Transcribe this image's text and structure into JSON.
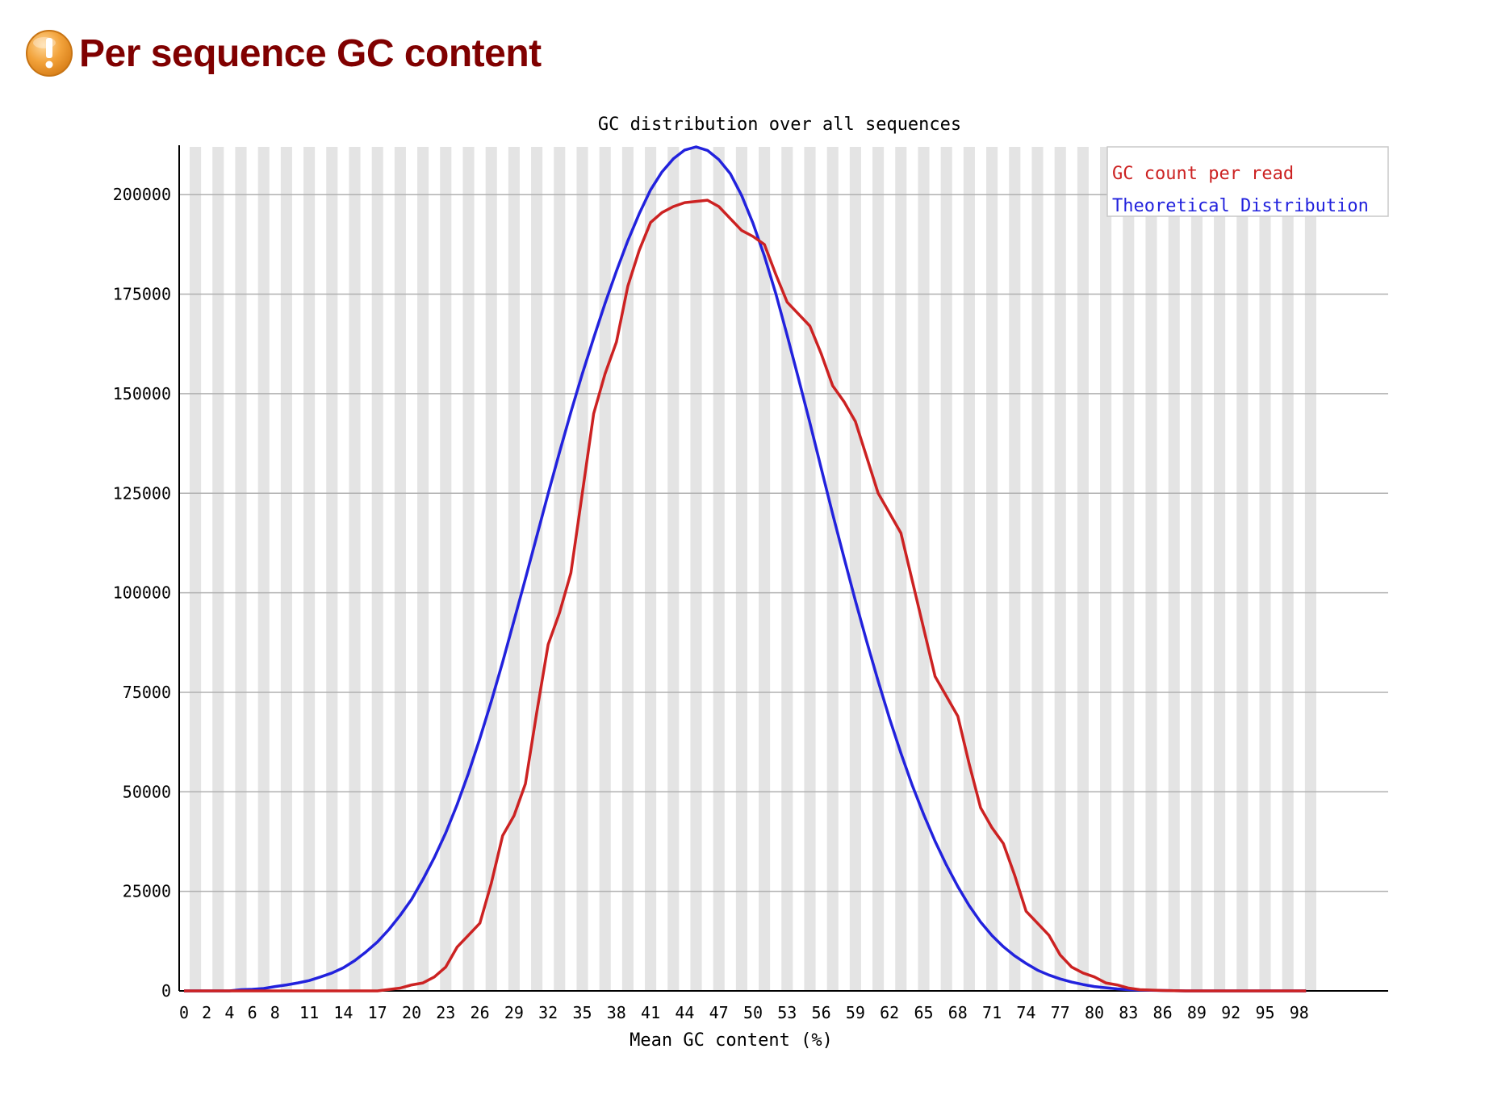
{
  "header": {
    "title": "Per sequence GC content",
    "status_icon": "warning-icon",
    "status_color": "#f0a030"
  },
  "chart_data": {
    "type": "line",
    "title": "GC distribution over all sequences",
    "xlabel": "Mean GC content (%)",
    "ylabel": "",
    "xlim": [
      0,
      100
    ],
    "ylim": [
      0,
      212000
    ],
    "y_ticks": [
      0,
      25000,
      50000,
      75000,
      100000,
      125000,
      150000,
      175000,
      200000
    ],
    "y_tick_labels": [
      "0",
      "25000",
      "50000",
      "75000",
      "100000",
      "125000",
      "150000",
      "175000",
      "200000"
    ],
    "x_ticks": [
      0,
      2,
      4,
      6,
      8,
      11,
      14,
      17,
      20,
      23,
      26,
      29,
      32,
      35,
      38,
      41,
      44,
      47,
      50,
      53,
      56,
      59,
      62,
      65,
      68,
      71,
      74,
      77,
      80,
      83,
      86,
      89,
      92,
      95,
      98
    ],
    "x_tick_labels": [
      "0",
      "2",
      "4",
      "6",
      "8",
      "11",
      "14",
      "17",
      "20",
      "23",
      "26",
      "29",
      "32",
      "35",
      "38",
      "41",
      "44",
      "47",
      "50",
      "53",
      "56",
      "59",
      "62",
      "65",
      "68",
      "71",
      "74",
      "77",
      "80",
      "83",
      "86",
      "89",
      "92",
      "95",
      "98"
    ],
    "grid": true,
    "legend_position": "top-right",
    "series": [
      {
        "name": "GC count per read",
        "color": "#cc2222",
        "points": [
          [
            0,
            0
          ],
          [
            5,
            0
          ],
          [
            17,
            0
          ],
          [
            19,
            700
          ],
          [
            20,
            1500
          ],
          [
            21,
            2000
          ],
          [
            22,
            3500
          ],
          [
            23,
            6000
          ],
          [
            24,
            11000
          ],
          [
            25,
            14000
          ],
          [
            26,
            17000
          ],
          [
            27,
            27000
          ],
          [
            28,
            39000
          ],
          [
            29,
            44000
          ],
          [
            30,
            52000
          ],
          [
            31,
            70000
          ],
          [
            32,
            87000
          ],
          [
            33,
            95000
          ],
          [
            34,
            105000
          ],
          [
            35,
            125000
          ],
          [
            36,
            145000
          ],
          [
            37,
            155000
          ],
          [
            38,
            163000
          ],
          [
            39,
            177000
          ],
          [
            40,
            186000
          ],
          [
            41,
            193000
          ],
          [
            42,
            195500
          ],
          [
            43,
            197000
          ],
          [
            44,
            198000
          ],
          [
            45,
            198300
          ],
          [
            46,
            198600
          ],
          [
            47,
            197000
          ],
          [
            48,
            194000
          ],
          [
            49,
            191000
          ],
          [
            50,
            189500
          ],
          [
            51,
            187500
          ],
          [
            52,
            180000
          ],
          [
            53,
            173000
          ],
          [
            54,
            170000
          ],
          [
            55,
            167000
          ],
          [
            56,
            160000
          ],
          [
            57,
            152000
          ],
          [
            58,
            148000
          ],
          [
            59,
            143000
          ],
          [
            60,
            134000
          ],
          [
            61,
            125000
          ],
          [
            62,
            120000
          ],
          [
            63,
            115000
          ],
          [
            64,
            103000
          ],
          [
            65,
            91000
          ],
          [
            66,
            79000
          ],
          [
            67,
            74000
          ],
          [
            68,
            69000
          ],
          [
            69,
            57000
          ],
          [
            70,
            46000
          ],
          [
            71,
            41000
          ],
          [
            72,
            37000
          ],
          [
            73,
            29000
          ],
          [
            74,
            20000
          ],
          [
            75,
            17000
          ],
          [
            76,
            14000
          ],
          [
            77,
            9000
          ],
          [
            78,
            6000
          ],
          [
            79,
            4500
          ],
          [
            80,
            3500
          ],
          [
            81,
            2000
          ],
          [
            82,
            1500
          ],
          [
            83,
            700
          ],
          [
            84,
            300
          ],
          [
            86,
            100
          ],
          [
            88,
            0
          ],
          [
            100,
            0
          ]
        ]
      },
      {
        "name": "Theoretical Distribution",
        "color": "#2222dd",
        "points": [
          [
            0,
            0
          ],
          [
            4,
            0
          ],
          [
            5,
            300
          ],
          [
            6,
            400
          ],
          [
            7,
            600
          ],
          [
            8,
            1100
          ],
          [
            9,
            1500
          ],
          [
            10,
            2000
          ],
          [
            11,
            2600
          ],
          [
            12,
            3500
          ],
          [
            13,
            4500
          ],
          [
            14,
            5800
          ],
          [
            15,
            7600
          ],
          [
            16,
            9800
          ],
          [
            17,
            12300
          ],
          [
            18,
            15400
          ],
          [
            19,
            19000
          ],
          [
            20,
            23000
          ],
          [
            21,
            28000
          ],
          [
            22,
            33500
          ],
          [
            23,
            39700
          ],
          [
            24,
            46800
          ],
          [
            25,
            54700
          ],
          [
            26,
            63400
          ],
          [
            27,
            72700
          ],
          [
            28,
            82600
          ],
          [
            29,
            93000
          ],
          [
            30,
            103500
          ],
          [
            31,
            114200
          ],
          [
            32,
            124900
          ],
          [
            33,
            135300
          ],
          [
            34,
            145400
          ],
          [
            35,
            155000
          ],
          [
            36,
            164000
          ],
          [
            37,
            172700
          ],
          [
            38,
            180800
          ],
          [
            39,
            188400
          ],
          [
            40,
            195200
          ],
          [
            41,
            201200
          ],
          [
            42,
            205700
          ],
          [
            43,
            209000
          ],
          [
            44,
            211200
          ],
          [
            45,
            212000
          ],
          [
            46,
            211100
          ],
          [
            47,
            208800
          ],
          [
            48,
            205300
          ],
          [
            49,
            199800
          ],
          [
            50,
            192800
          ],
          [
            51,
            184600
          ],
          [
            52,
            175200
          ],
          [
            53,
            164700
          ],
          [
            54,
            153800
          ],
          [
            55,
            142700
          ],
          [
            56,
            131200
          ],
          [
            57,
            119800
          ],
          [
            58,
            108800
          ],
          [
            59,
            98000
          ],
          [
            60,
            87700
          ],
          [
            61,
            77800
          ],
          [
            62,
            68400
          ],
          [
            63,
            59700
          ],
          [
            64,
            51600
          ],
          [
            65,
            44300
          ],
          [
            66,
            37600
          ],
          [
            67,
            31600
          ],
          [
            68,
            26200
          ],
          [
            69,
            21400
          ],
          [
            70,
            17300
          ],
          [
            71,
            13900
          ],
          [
            72,
            11100
          ],
          [
            73,
            8800
          ],
          [
            74,
            6900
          ],
          [
            75,
            5200
          ],
          [
            76,
            4000
          ],
          [
            77,
            3000
          ],
          [
            78,
            2200
          ],
          [
            79,
            1600
          ],
          [
            80,
            1100
          ],
          [
            81,
            800
          ],
          [
            82,
            500
          ],
          [
            83,
            300
          ],
          [
            84,
            200
          ],
          [
            86,
            100
          ],
          [
            88,
            0
          ],
          [
            100,
            0
          ]
        ]
      }
    ]
  }
}
